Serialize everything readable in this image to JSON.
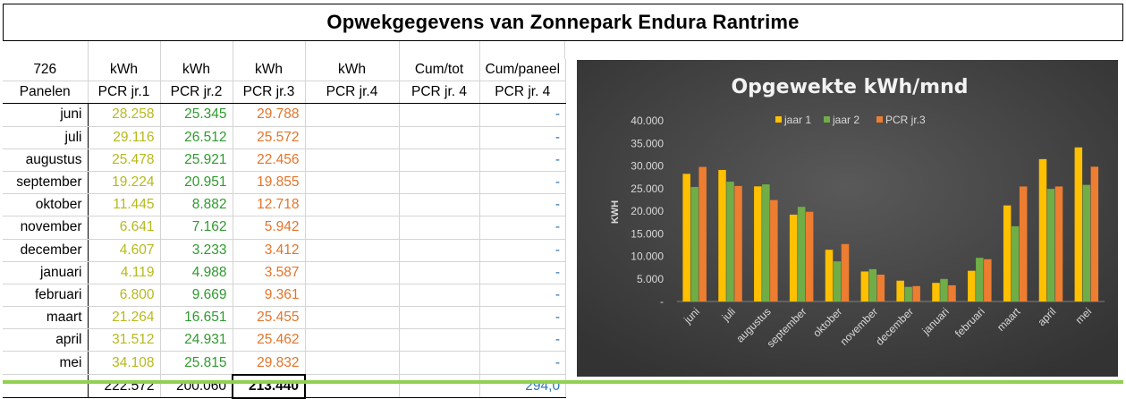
{
  "sheet_title": "Opwekgegevens van Zonnepark Endura Rantrime",
  "table": {
    "header_row1": [
      "726",
      "kWh",
      "kWh",
      "kWh",
      "kWh",
      "Cum/tot",
      "Cum/paneel"
    ],
    "header_row2": [
      "Panelen",
      "PCR jr.1",
      "PCR jr.2",
      "PCR jr.3",
      "PCR jr.4",
      "PCR jr.  4",
      "PCR jr. 4"
    ],
    "rows": [
      {
        "month": "juni",
        "y1": "28.258",
        "y2": "25.345",
        "y3": "29.788",
        "cp": "-"
      },
      {
        "month": "juli",
        "y1": "29.116",
        "y2": "26.512",
        "y3": "25.572",
        "cp": "-"
      },
      {
        "month": "augustus",
        "y1": "25.478",
        "y2": "25.921",
        "y3": "22.456",
        "cp": "-"
      },
      {
        "month": "september",
        "y1": "19.224",
        "y2": "20.951",
        "y3": "19.855",
        "cp": "-"
      },
      {
        "month": "oktober",
        "y1": "11.445",
        "y2": "8.882",
        "y3": "12.718",
        "cp": "-"
      },
      {
        "month": "november",
        "y1": "6.641",
        "y2": "7.162",
        "y3": "5.942",
        "cp": "-"
      },
      {
        "month": "december",
        "y1": "4.607",
        "y2": "3.233",
        "y3": "3.412",
        "cp": "-"
      },
      {
        "month": "januari",
        "y1": "4.119",
        "y2": "4.988",
        "y3": "3.587",
        "cp": "-"
      },
      {
        "month": "februari",
        "y1": "6.800",
        "y2": "9.669",
        "y3": "9.361",
        "cp": "-"
      },
      {
        "month": "maart",
        "y1": "21.264",
        "y2": "16.651",
        "y3": "25.455",
        "cp": "-"
      },
      {
        "month": "april",
        "y1": "31.512",
        "y2": "24.931",
        "y3": "25.462",
        "cp": "-"
      },
      {
        "month": "mei",
        "y1": "34.108",
        "y2": "25.815",
        "y3": "29.832",
        "cp": "-"
      }
    ],
    "totals": {
      "y1": "222.572",
      "y2": "200.060",
      "y3": "213.440",
      "cp": "294,0"
    }
  },
  "colors": {
    "year1": "#ffc000",
    "year2": "#70ad47",
    "year3": "#ed7d31",
    "chart_bg": "#404040",
    "chart_text": "#d9d9d9"
  },
  "chart_data": {
    "type": "bar",
    "title": "Opgewekte kWh/mnd",
    "xlabel": "",
    "ylabel": "KWH",
    "categories": [
      "juni",
      "juli",
      "augustus",
      "september",
      "oktober",
      "november",
      "december",
      "januari",
      "februari",
      "maart",
      "april",
      "mei"
    ],
    "series": [
      {
        "name": "jaar 1",
        "values": [
          28258,
          29116,
          25478,
          19224,
          11445,
          6641,
          4607,
          4119,
          6800,
          21264,
          31512,
          34108
        ]
      },
      {
        "name": "jaar 2",
        "values": [
          25345,
          26512,
          25921,
          20951,
          8882,
          7162,
          3233,
          4988,
          9669,
          16651,
          24931,
          25815
        ]
      },
      {
        "name": "PCR jr.3",
        "values": [
          29788,
          25572,
          22456,
          19855,
          12718,
          5942,
          3412,
          3587,
          9361,
          25455,
          25462,
          29832
        ]
      }
    ],
    "yticks": [
      "-",
      "5.000",
      "10.000",
      "15.000",
      "20.000",
      "25.000",
      "30.000",
      "35.000",
      "40.000"
    ],
    "ylim": [
      0,
      40000
    ],
    "legend": "top",
    "grid": false
  }
}
